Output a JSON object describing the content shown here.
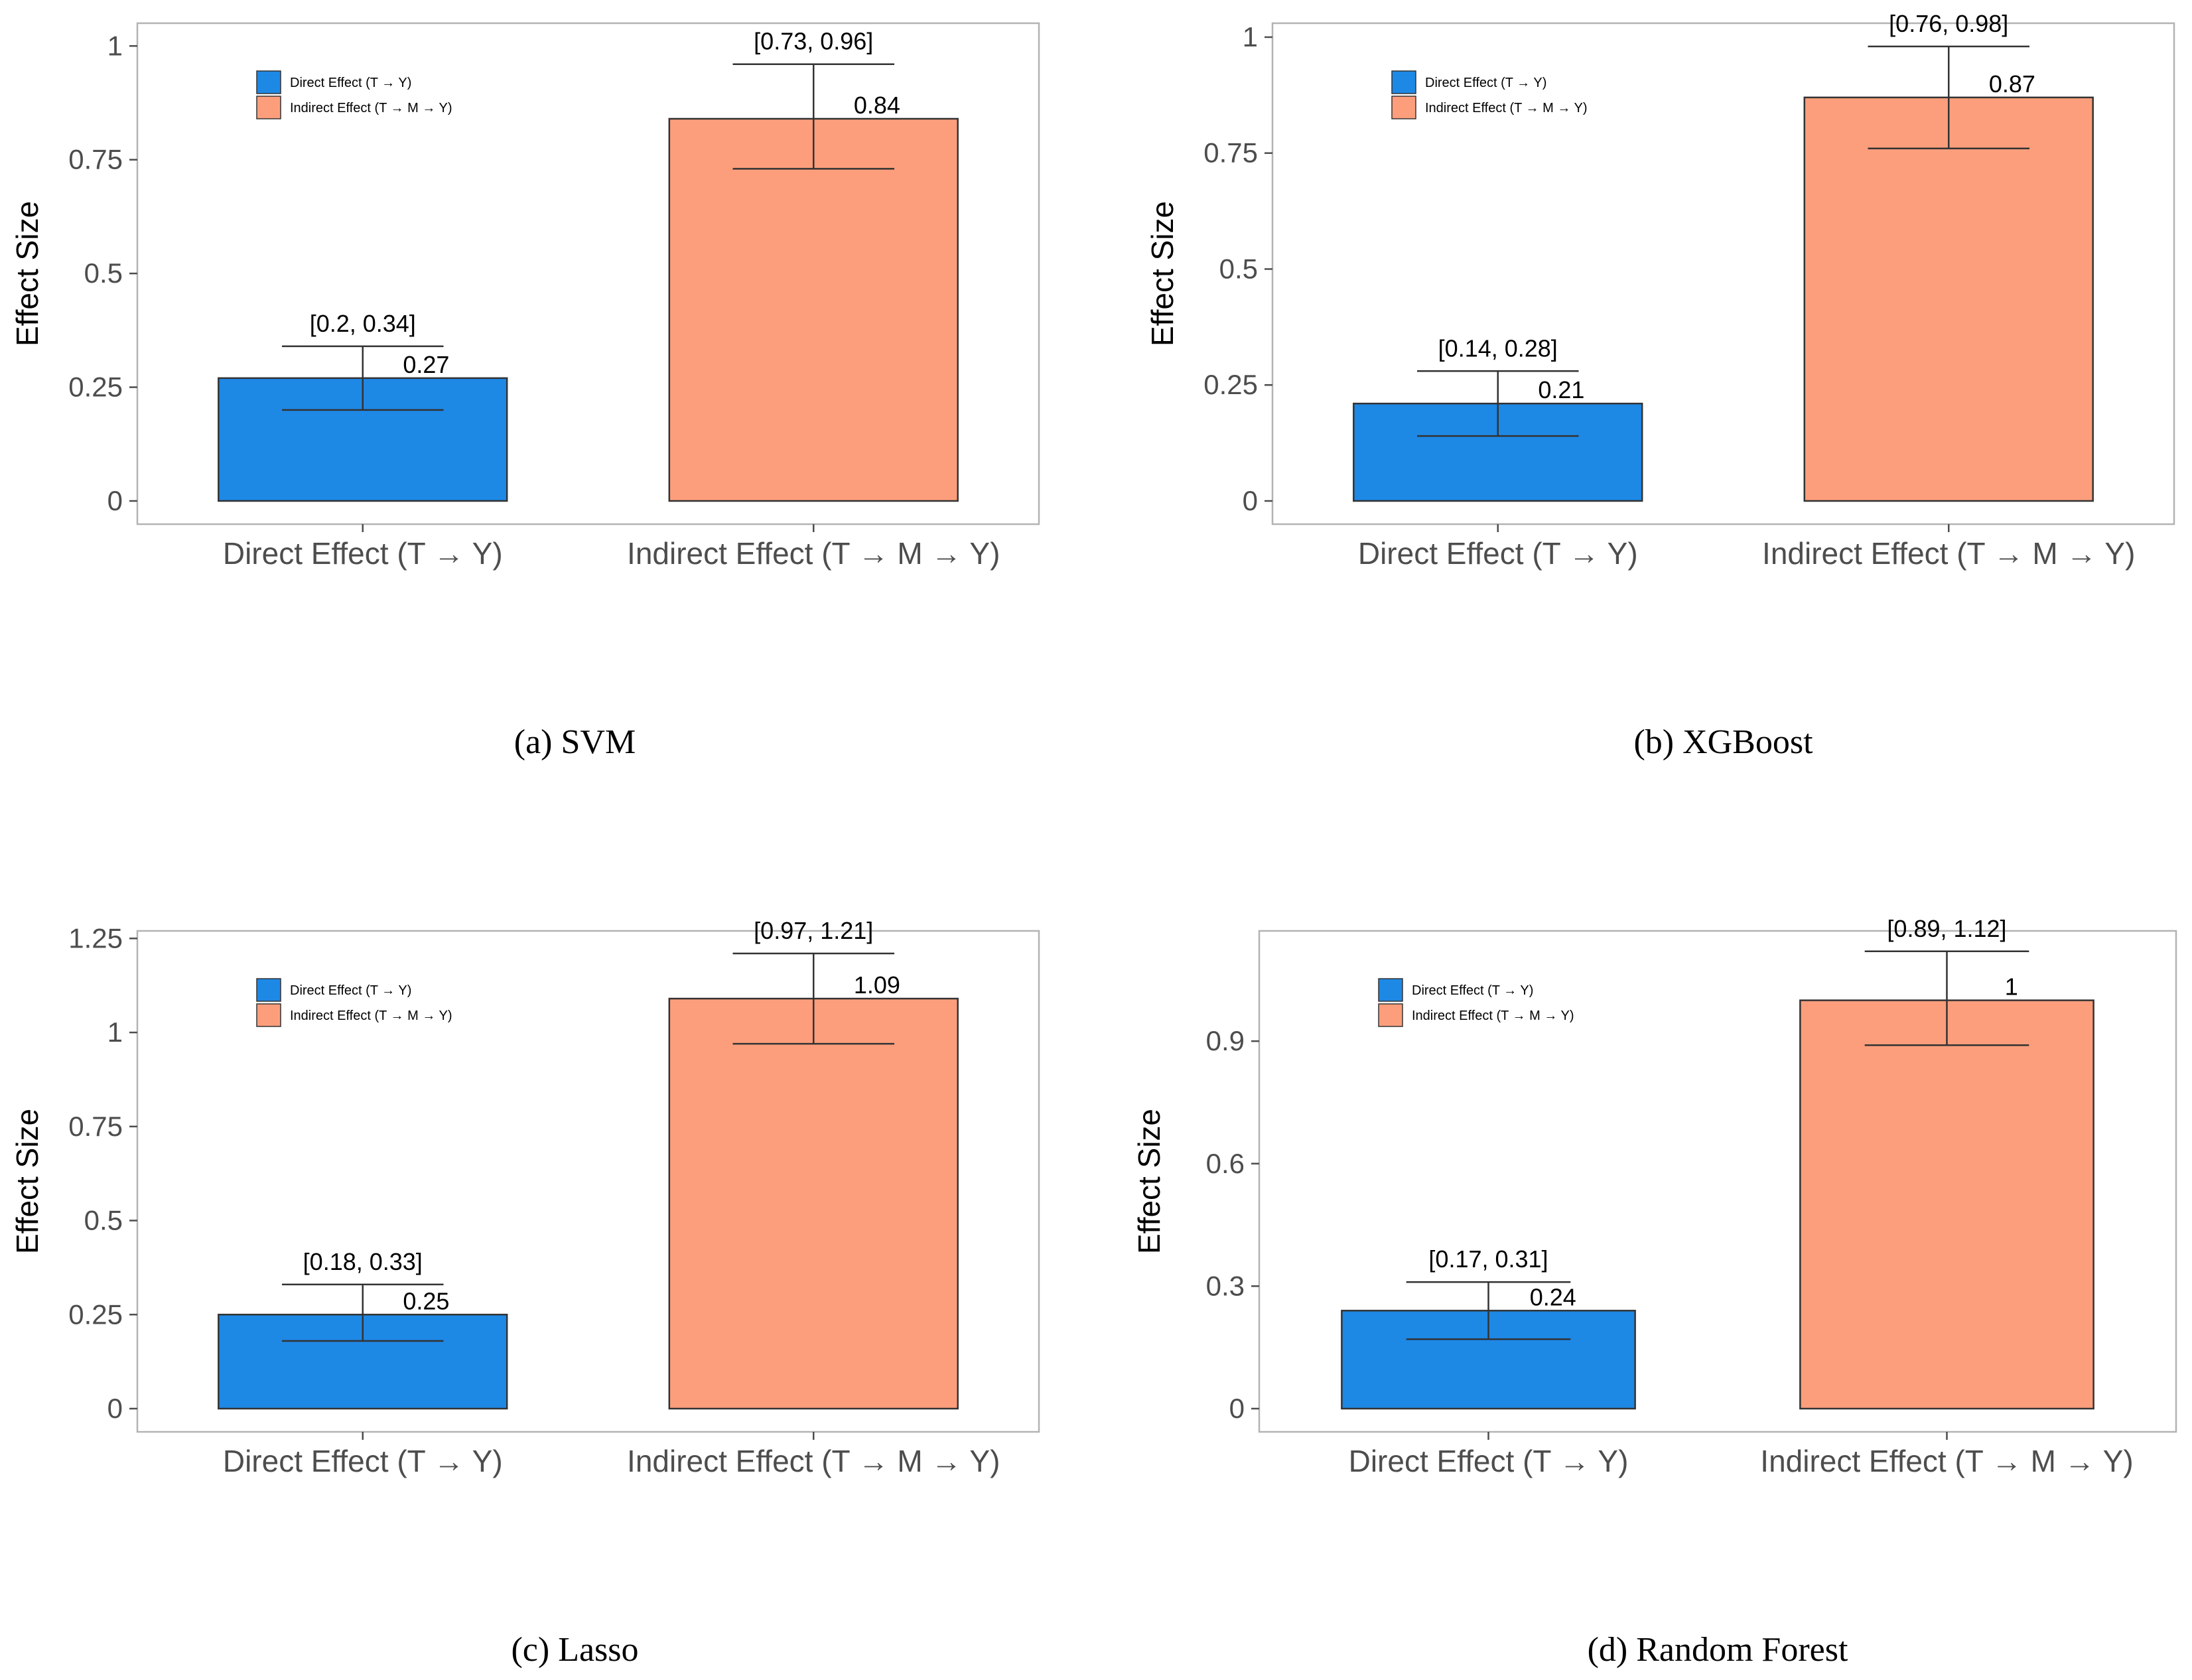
{
  "colors": {
    "direct": "#1e88e5",
    "indirect": "#fc9e7c",
    "frame": "#b3b3b3",
    "axis_text": "#4d4d4d",
    "label_text": "#000000"
  },
  "chart_data": [
    {
      "type": "bar",
      "caption": "(a) SVM",
      "ylabel": "Effect Size",
      "ylim": [
        0,
        1.05
      ],
      "yticks": [
        0,
        0.25,
        0.5,
        0.75,
        1
      ],
      "ytick_labels": [
        "0",
        "0.25",
        "0.5",
        "0.75",
        "1"
      ],
      "categories": [
        "Direct Effect (T → Y)",
        "Indirect Effect (T → M → Y)"
      ],
      "values": [
        0.27,
        0.84
      ],
      "value_labels": [
        "0.27",
        "0.84"
      ],
      "ci": [
        [
          0.2,
          0.34
        ],
        [
          0.73,
          0.96
        ]
      ],
      "ci_labels": [
        "[0.2, 0.34]",
        "[0.73, 0.96]"
      ],
      "legend": [
        "Direct Effect (T → Y)",
        "Indirect Effect (T → M → Y)"
      ],
      "legend_position": "top-left",
      "grid": false
    },
    {
      "type": "bar",
      "caption": "(b) XGBoost",
      "ylabel": "Effect Size",
      "ylim": [
        0,
        1.03
      ],
      "yticks": [
        0,
        0.25,
        0.5,
        0.75,
        1
      ],
      "ytick_labels": [
        "0",
        "0.25",
        "0.5",
        "0.75",
        "1"
      ],
      "categories": [
        "Direct Effect (T → Y)",
        "Indirect Effect (T → M → Y)"
      ],
      "values": [
        0.21,
        0.87
      ],
      "value_labels": [
        "0.21",
        "0.87"
      ],
      "ci": [
        [
          0.14,
          0.28
        ],
        [
          0.76,
          0.98
        ]
      ],
      "ci_labels": [
        "[0.14, 0.28]",
        "[0.76, 0.98]"
      ],
      "legend": [
        "Direct Effect (T → Y)",
        "Indirect Effect (T → M → Y)"
      ],
      "legend_position": "top-left",
      "grid": false
    },
    {
      "type": "bar",
      "caption": "(c) Lasso",
      "ylabel": "Effect Size",
      "ylim": [
        0,
        1.27
      ],
      "yticks": [
        0,
        0.25,
        0.5,
        0.75,
        1,
        1.25
      ],
      "ytick_labels": [
        "0",
        "0.25",
        "0.5",
        "0.75",
        "1",
        "1.25"
      ],
      "categories": [
        "Direct Effect (T → Y)",
        "Indirect Effect (T → M → Y)"
      ],
      "values": [
        0.25,
        1.09
      ],
      "value_labels": [
        "0.25",
        "1.09"
      ],
      "ci": [
        [
          0.18,
          0.33
        ],
        [
          0.97,
          1.21
        ]
      ],
      "ci_labels": [
        "[0.18, 0.33]",
        "[0.97, 1.21]"
      ],
      "legend": [
        "Direct Effect (T → Y)",
        "Indirect Effect (T → M → Y)"
      ],
      "legend_position": "top-left",
      "grid": false
    },
    {
      "type": "bar",
      "caption": "(d) Random Forest",
      "ylabel": "Effect Size",
      "ylim": [
        0,
        1.17
      ],
      "yticks": [
        0,
        0.3,
        0.6,
        0.9
      ],
      "ytick_labels": [
        "0",
        "0.3",
        "0.6",
        "0.9"
      ],
      "categories": [
        "Direct Effect (T → Y)",
        "Indirect Effect (T → M → Y)"
      ],
      "values": [
        0.24,
        1.0
      ],
      "value_labels": [
        "0.24",
        "1"
      ],
      "ci": [
        [
          0.17,
          0.31
        ],
        [
          0.89,
          1.12
        ]
      ],
      "ci_labels": [
        "[0.17, 0.31]",
        "[0.89, 1.12]"
      ],
      "legend": [
        "Direct Effect (T → Y)",
        "Indirect Effect (T → M → Y)"
      ],
      "legend_position": "top-left",
      "grid": false
    }
  ]
}
